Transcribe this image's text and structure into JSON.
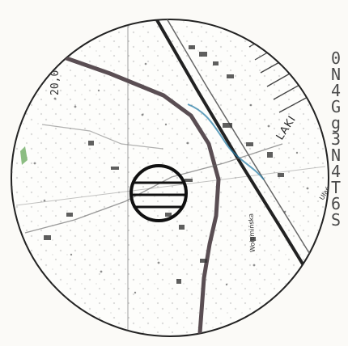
{
  "map": {
    "elevation_label": "20,0",
    "place_label": "LAKI",
    "road_label": "Wołomińska",
    "road_label_right": "Ułańska",
    "side_code": "0N4Gg3N4T6S"
  },
  "colors": {
    "paper": "#fbfaf7",
    "ink": "#2a2a2a",
    "road": "#5a4e53",
    "water": "#2b7fa8",
    "green": "#78b26c"
  }
}
